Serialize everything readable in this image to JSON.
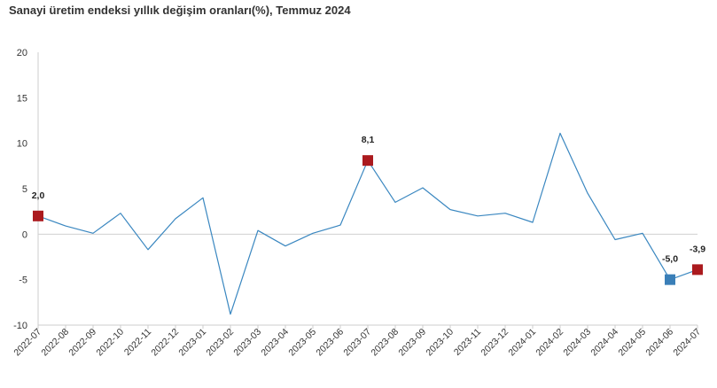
{
  "chart_data": {
    "type": "line",
    "title": "Sanayi üretim endeksi yıllık değişim oranları(%), Temmuz 2024",
    "xlabel": "",
    "ylabel": "",
    "ylim": [
      -10,
      20
    ],
    "yticks": [
      20,
      15,
      10,
      5,
      0,
      -5,
      -10
    ],
    "grid": false,
    "legend": "none",
    "categories": [
      "2022-07",
      "2022-08",
      "2022-09",
      "2022-10",
      "2022-11",
      "2022-12",
      "2023-01",
      "2023-02",
      "2023-03",
      "2023-04",
      "2023-05",
      "2023-06",
      "2023-07",
      "2023-08",
      "2023-09",
      "2023-10",
      "2023-11",
      "2023-12",
      "2024-01",
      "2024-02",
      "2024-03",
      "2024-04",
      "2024-05",
      "2024-06",
      "2024-07"
    ],
    "series": [
      {
        "values": [
          2.0,
          0.9,
          0.1,
          2.3,
          -1.7,
          1.7,
          4.0,
          -8.8,
          0.4,
          -1.3,
          0.1,
          1.0,
          8.1,
          3.5,
          5.1,
          2.7,
          2.0,
          2.3,
          1.3,
          11.1,
          4.5,
          -0.6,
          0.1,
          -5.0,
          -3.9
        ],
        "color": "#3a87c0"
      }
    ],
    "annotations": [
      {
        "index": 0,
        "label": "2,0",
        "marker_color": "#ab1a1e"
      },
      {
        "index": 12,
        "label": "8,1",
        "marker_color": "#ab1a1e"
      },
      {
        "index": 23,
        "label": "-5,0",
        "marker_color": "#3a7fb8"
      },
      {
        "index": 24,
        "label": "-3,9",
        "marker_color": "#ab1a1e"
      }
    ],
    "colors": {
      "line": "#3a87c0",
      "zero_line": "#d0d0d0",
      "axis": "#cccccc"
    }
  }
}
